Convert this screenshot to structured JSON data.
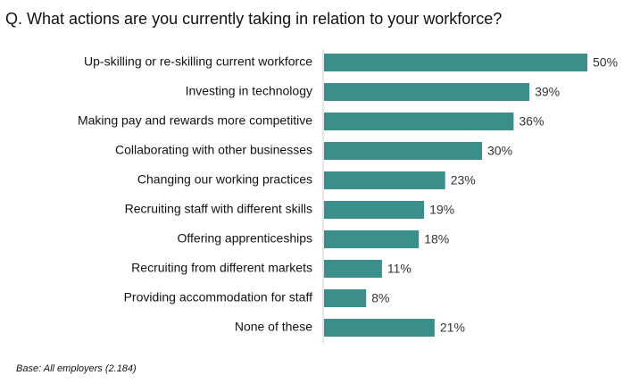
{
  "chart_data": {
    "type": "bar",
    "orientation": "horizontal",
    "title": "Q. What actions are you currently taking in relation to your workforce?",
    "categories": [
      "Up-skilling or re-skilling current workforce",
      "Investing in technology",
      "Making pay and rewards more competitive",
      "Collaborating with other businesses",
      "Changing our working practices",
      "Recruiting staff with different skills",
      "Offering apprenticeships",
      "Recruiting from different markets",
      "Providing accommodation for staff",
      "None of these"
    ],
    "values": [
      50,
      39,
      36,
      30,
      23,
      19,
      18,
      11,
      8,
      21
    ],
    "value_labels": [
      "50%",
      "39%",
      "36%",
      "30%",
      "23%",
      "19%",
      "18%",
      "11%",
      "8%",
      "21%"
    ],
    "color": "#3a8f8a",
    "note": "Base: All employers (2.184)"
  }
}
